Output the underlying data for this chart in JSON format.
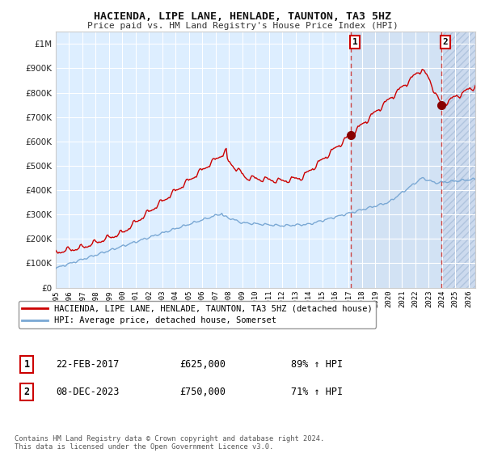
{
  "title": "HACIENDA, LIPE LANE, HENLADE, TAUNTON, TA3 5HZ",
  "subtitle": "Price paid vs. HM Land Registry's House Price Index (HPI)",
  "xmin": 1995.0,
  "xmax": 2026.5,
  "ymin": 0,
  "ymax": 1050000,
  "yticks": [
    0,
    100000,
    200000,
    300000,
    400000,
    500000,
    600000,
    700000,
    800000,
    900000,
    1000000
  ],
  "ytick_labels": [
    "£0",
    "£100K",
    "£200K",
    "£300K",
    "£400K",
    "£500K",
    "£600K",
    "£700K",
    "£800K",
    "£900K",
    "£1M"
  ],
  "sale1_x": 2017.14,
  "sale1_y": 625000,
  "sale1_label": "1",
  "sale1_date": "22-FEB-2017",
  "sale1_price": "£625,000",
  "sale1_hpi": "89% ↑ HPI",
  "sale2_x": 2023.93,
  "sale2_y": 750000,
  "sale2_label": "2",
  "sale2_date": "08-DEC-2023",
  "sale2_price": "£750,000",
  "sale2_hpi": "71% ↑ HPI",
  "red_line_color": "#cc0000",
  "blue_line_color": "#7aa8d4",
  "bg_color": "#ddeeff",
  "grid_color": "#ffffff",
  "dashed_line_color": "#cc4444",
  "marker_color": "#880000",
  "legend_label_red": "HACIENDA, LIPE LANE, HENLADE, TAUNTON, TA3 5HZ (detached house)",
  "legend_label_blue": "HPI: Average price, detached house, Somerset",
  "footnote": "Contains HM Land Registry data © Crown copyright and database right 2024.\nThis data is licensed under the Open Government Licence v3.0."
}
